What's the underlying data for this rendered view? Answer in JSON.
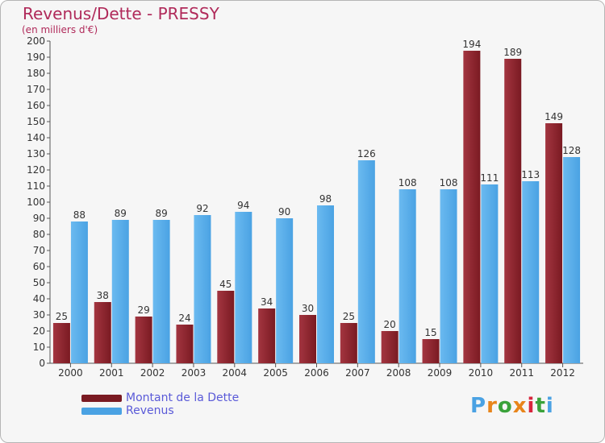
{
  "title": "Revenus/Dette - PRESSY",
  "subtitle": "(en milliers d'€)",
  "colors": {
    "dette": "#7a1a22",
    "dette_light": "#a33540",
    "revenus": "#4aa2e3",
    "revenus_light": "#6bbaf0",
    "title": "#b02a5a",
    "legend_text": "#5a5ad8"
  },
  "legend": {
    "dette_label": "Montant de la Dette",
    "revenus_label": "Revenus"
  },
  "logo": {
    "text": "Proxiti"
  },
  "chart_data": {
    "type": "bar",
    "categories": [
      "2000",
      "2001",
      "2002",
      "2003",
      "2004",
      "2005",
      "2006",
      "2007",
      "2008",
      "2009",
      "2010",
      "2011",
      "2012"
    ],
    "series": [
      {
        "name": "Montant de la Dette",
        "values": [
          25,
          38,
          29,
          24,
          45,
          34,
          30,
          25,
          20,
          15,
          194,
          189,
          149
        ]
      },
      {
        "name": "Revenus",
        "values": [
          88,
          89,
          89,
          92,
          94,
          90,
          98,
          126,
          108,
          108,
          111,
          113,
          128
        ]
      }
    ],
    "ylim": [
      0,
      200
    ],
    "ytick_step": 10,
    "grid": false,
    "legend_position": "bottom-left"
  }
}
